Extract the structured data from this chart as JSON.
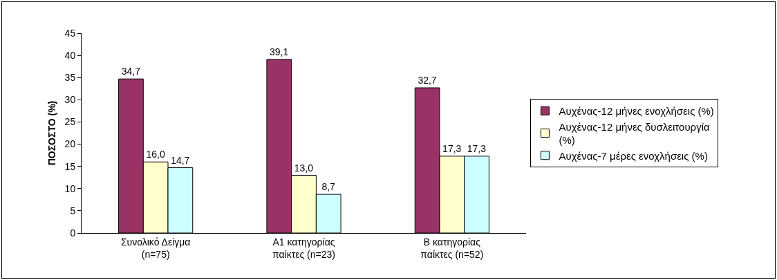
{
  "chart_data": {
    "type": "bar",
    "ylabel": "ΠΟΣΟΣΤΟ (%)",
    "categories": [
      "Συνολικό Δείγμα (n=75)",
      "Α1 κατηγορίας παίκτες (n=23)",
      "Β κατηγορίας παίκτες (n=52)"
    ],
    "series": [
      {
        "name": "Αυχένας-12 μήνες ενοχλήσεις (%)",
        "color": "#993366",
        "values": [
          34.7,
          39.1,
          32.7
        ],
        "value_labels": [
          "34,7",
          "39,1",
          "32,7"
        ]
      },
      {
        "name": "Αυχένας-12 μήνες δυσλειτουργία (%)",
        "color": "#ffffcc",
        "values": [
          16.0,
          13.0,
          17.3
        ],
        "value_labels": [
          "16,0",
          "13,0",
          "17,3"
        ]
      },
      {
        "name": "Αυχένας-7 μέρες ενοχλήσεις (%)",
        "color": "#ccffff",
        "values": [
          14.7,
          8.7,
          17.3
        ],
        "value_labels": [
          "14,7",
          "8,7",
          "17,3"
        ]
      }
    ],
    "ylim": [
      0,
      45
    ],
    "yticks": [
      0,
      5,
      10,
      15,
      20,
      25,
      30,
      35,
      40,
      45
    ],
    "grid": false,
    "legend": "right"
  }
}
